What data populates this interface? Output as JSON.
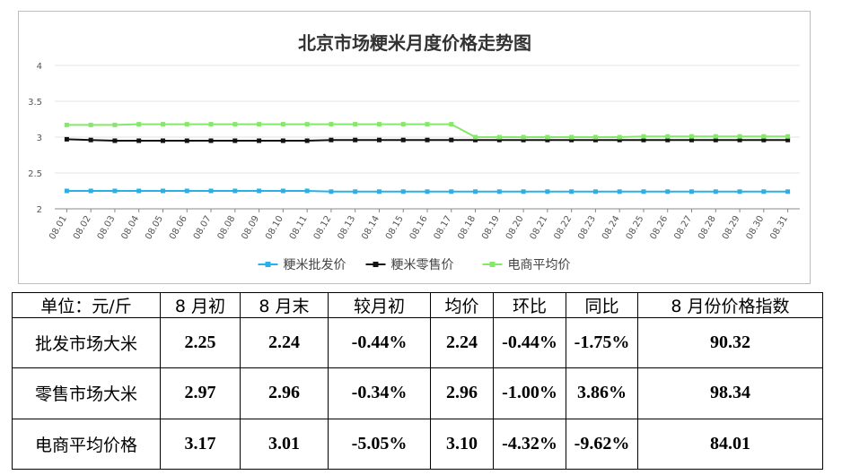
{
  "chart_data": {
    "type": "line",
    "title": "北京市场粳米月度价格走势图",
    "xlabel": "",
    "ylabel": "",
    "ylim": [
      2,
      4
    ],
    "yticks": [
      "2",
      "2.5",
      "3",
      "3.5",
      "4"
    ],
    "grid": "horizontal",
    "legend_placement": "bottom",
    "x": [
      "08.01",
      "08.02",
      "08.03",
      "08.04",
      "08.05",
      "08.06",
      "08.07",
      "08.08",
      "08.09",
      "08.10",
      "08.11",
      "08.12",
      "08.13",
      "08.14",
      "08.15",
      "08.16",
      "08.17",
      "08.18",
      "08.19",
      "08.20",
      "08.21",
      "08.22",
      "08.23",
      "08.24",
      "08.25",
      "08.26",
      "08.27",
      "08.28",
      "08.29",
      "08.30",
      "08.31"
    ],
    "series": [
      {
        "name": "粳米批发价",
        "color": "#2ab0e6",
        "values": [
          2.25,
          2.25,
          2.25,
          2.25,
          2.25,
          2.25,
          2.25,
          2.25,
          2.25,
          2.25,
          2.25,
          2.24,
          2.24,
          2.24,
          2.24,
          2.24,
          2.24,
          2.24,
          2.24,
          2.24,
          2.24,
          2.24,
          2.24,
          2.24,
          2.24,
          2.24,
          2.24,
          2.24,
          2.24,
          2.24,
          2.24
        ]
      },
      {
        "name": "粳米零售价",
        "color": "#111111",
        "values": [
          2.97,
          2.96,
          2.95,
          2.95,
          2.95,
          2.95,
          2.95,
          2.95,
          2.95,
          2.95,
          2.95,
          2.96,
          2.96,
          2.96,
          2.96,
          2.96,
          2.96,
          2.96,
          2.96,
          2.96,
          2.96,
          2.96,
          2.96,
          2.96,
          2.96,
          2.96,
          2.96,
          2.96,
          2.96,
          2.96,
          2.96
        ]
      },
      {
        "name": "电商平均价",
        "color": "#86e86a",
        "values": [
          3.17,
          3.17,
          3.17,
          3.18,
          3.18,
          3.18,
          3.18,
          3.18,
          3.18,
          3.18,
          3.18,
          3.18,
          3.18,
          3.18,
          3.18,
          3.18,
          3.18,
          3.0,
          3.0,
          3.0,
          3.0,
          3.0,
          3.0,
          3.0,
          3.01,
          3.01,
          3.01,
          3.01,
          3.01,
          3.01,
          3.01
        ]
      }
    ]
  },
  "table": {
    "headers": [
      "单位：元/斤",
      "8 月初",
      "8 月末",
      "较月初",
      "均价",
      "环比",
      "同比",
      "8 月份价格指数"
    ],
    "rows": [
      [
        "批发市场大米",
        "2.25",
        "2.24",
        "-0.44%",
        "2.24",
        "-0.44%",
        "-1.75%",
        "90.32"
      ],
      [
        "零售市场大米",
        "2.97",
        "2.96",
        "-0.34%",
        "2.96",
        "-1.00%",
        "3.86%",
        "98.34"
      ],
      [
        "电商平均价格",
        "3.17",
        "3.01",
        "-5.05%",
        "3.10",
        "-4.32%",
        "-9.62%",
        "84.01"
      ]
    ]
  }
}
